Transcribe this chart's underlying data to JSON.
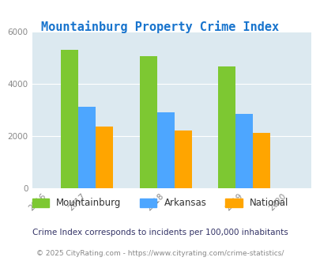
{
  "title": "Mountainburg Property Crime Index",
  "title_color": "#1874CD",
  "years_all": [
    "2016",
    "2017",
    "2018",
    "2019",
    "2020"
  ],
  "bar_years": [
    2017,
    2018,
    2019
  ],
  "mountainburg": [
    5300,
    5050,
    4650
  ],
  "arkansas": [
    3100,
    2900,
    2850
  ],
  "national": [
    2350,
    2200,
    2100
  ],
  "colors": {
    "mountainburg": "#7dc832",
    "arkansas": "#4da6ff",
    "national": "#ffa500"
  },
  "background_color": "#dce9f0",
  "ylim": [
    0,
    6000
  ],
  "yticks": [
    0,
    2000,
    4000,
    6000
  ],
  "legend_labels": [
    "Mountainburg",
    "Arkansas",
    "National"
  ],
  "footnote1": "Crime Index corresponds to incidents per 100,000 inhabitants",
  "footnote2": "© 2025 CityRating.com - https://www.cityrating.com/crime-statistics/",
  "bar_width": 0.22,
  "title_fontsize": 11,
  "legend_fontsize": 8.5,
  "footnote1_fontsize": 7.5,
  "footnote2_fontsize": 6.5
}
